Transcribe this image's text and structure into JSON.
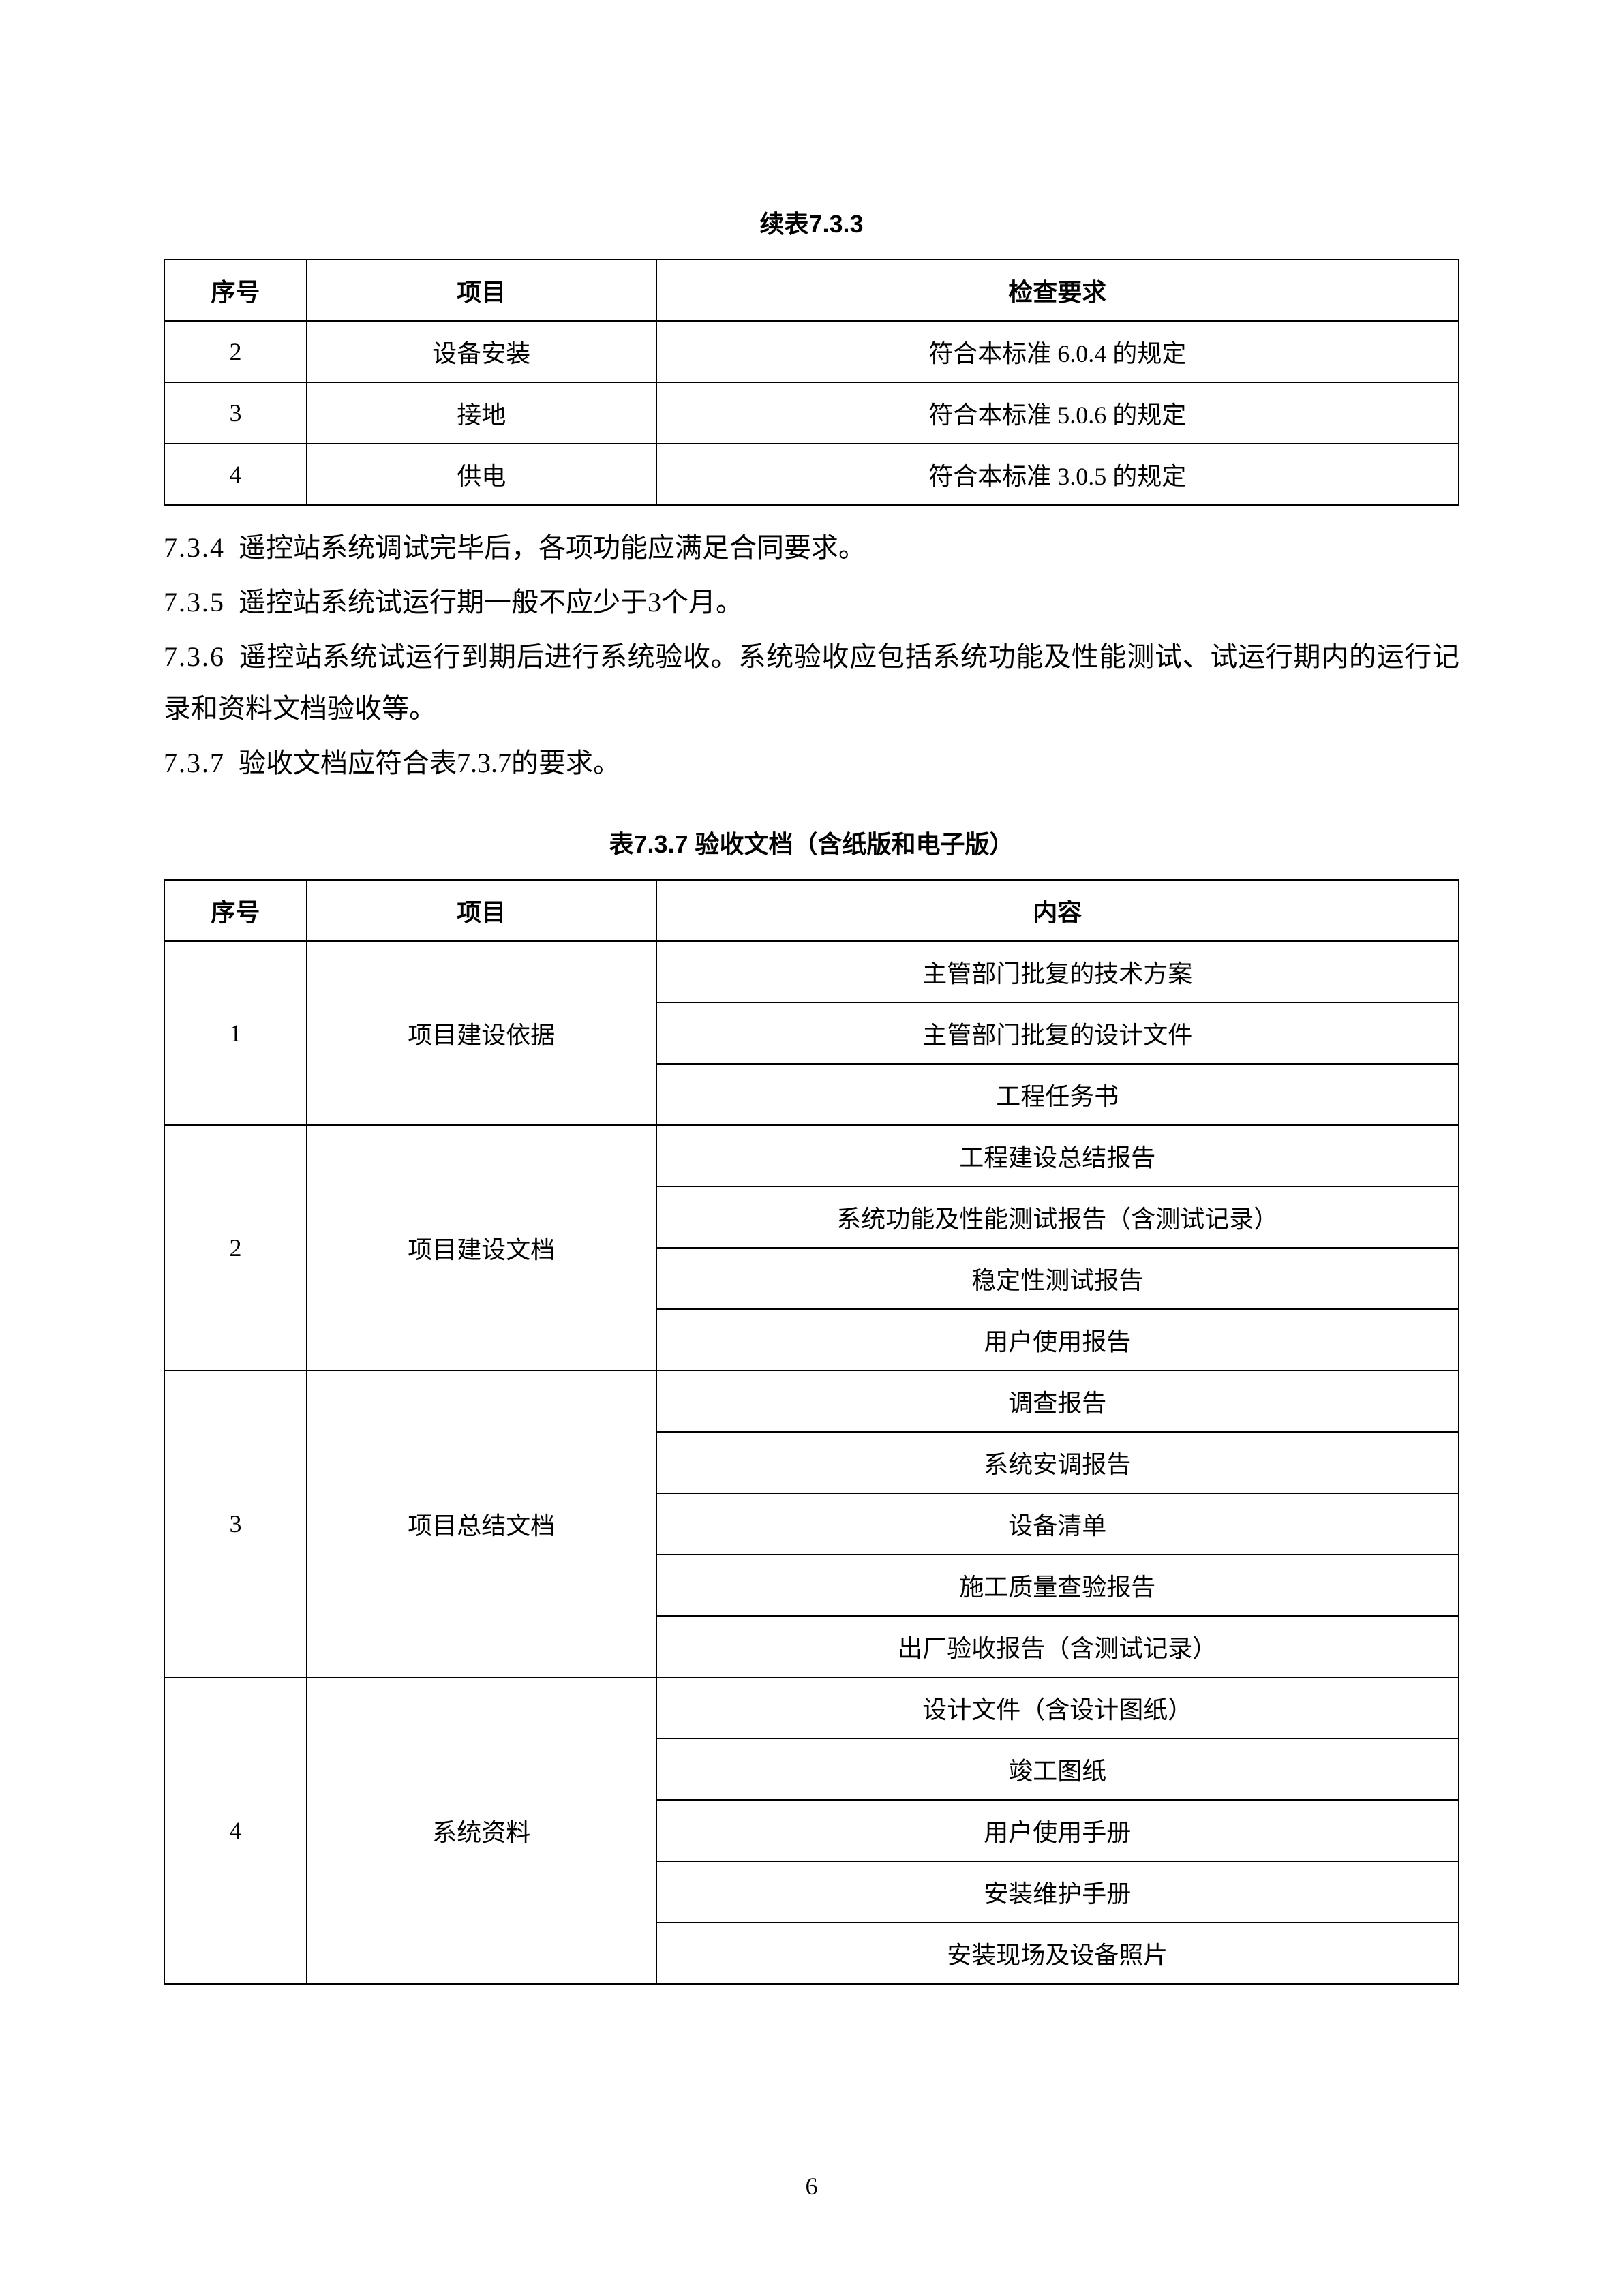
{
  "page_number": "6",
  "background_color": "#ffffff",
  "text_color": "#000000",
  "table_border_color": "#000000",
  "body_fontsize_pt": 30,
  "caption_fontsize_pt": 27,
  "table_fontsize_pt": 27,
  "table733": {
    "caption": "续表7.3.3",
    "type": "table",
    "columns": [
      "序号",
      "项目",
      "检查要求"
    ],
    "rows": [
      [
        "2",
        "设备安装",
        "符合本标准 6.0.4 的规定"
      ],
      [
        "3",
        "接地",
        "符合本标准 5.0.6 的规定"
      ],
      [
        "4",
        "供电",
        "符合本标准 3.0.5 的规定"
      ]
    ],
    "col_widths_pct": [
      11,
      27,
      62
    ]
  },
  "paragraphs": [
    {
      "num": "7.3.4",
      "text": "遥控站系统调试完毕后，各项功能应满足合同要求。"
    },
    {
      "num": "7.3.5",
      "text": "遥控站系统试运行期一般不应少于3个月。"
    },
    {
      "num": "7.3.6",
      "text": "遥控站系统试运行到期后进行系统验收。系统验收应包括系统功能及性能测试、试运行期内的运行记录和资料文档验收等。"
    },
    {
      "num": "7.3.7",
      "text": "验收文档应符合表7.3.7的要求。"
    }
  ],
  "table737": {
    "caption": "表7.3.7 验收文档（含纸版和电子版）",
    "type": "table",
    "columns": [
      "序号",
      "项目",
      "内容"
    ],
    "col_widths_pct": [
      11,
      27,
      62
    ],
    "groups": [
      {
        "xuhao": "1",
        "xiangmu": "项目建设依据",
        "contents": [
          "主管部门批复的技术方案",
          "主管部门批复的设计文件",
          "工程任务书"
        ]
      },
      {
        "xuhao": "2",
        "xiangmu": "项目建设文档",
        "contents": [
          "工程建设总结报告",
          "系统功能及性能测试报告（含测试记录）",
          "稳定性测试报告",
          "用户使用报告"
        ]
      },
      {
        "xuhao": "3",
        "xiangmu": "项目总结文档",
        "contents": [
          "调查报告",
          "系统安调报告",
          "设备清单",
          "施工质量查验报告",
          "出厂验收报告（含测试记录）"
        ]
      },
      {
        "xuhao": "4",
        "xiangmu": "系统资料",
        "contents": [
          "设计文件（含设计图纸）",
          "竣工图纸",
          "用户使用手册",
          "安装维护手册",
          "安装现场及设备照片"
        ]
      }
    ]
  }
}
